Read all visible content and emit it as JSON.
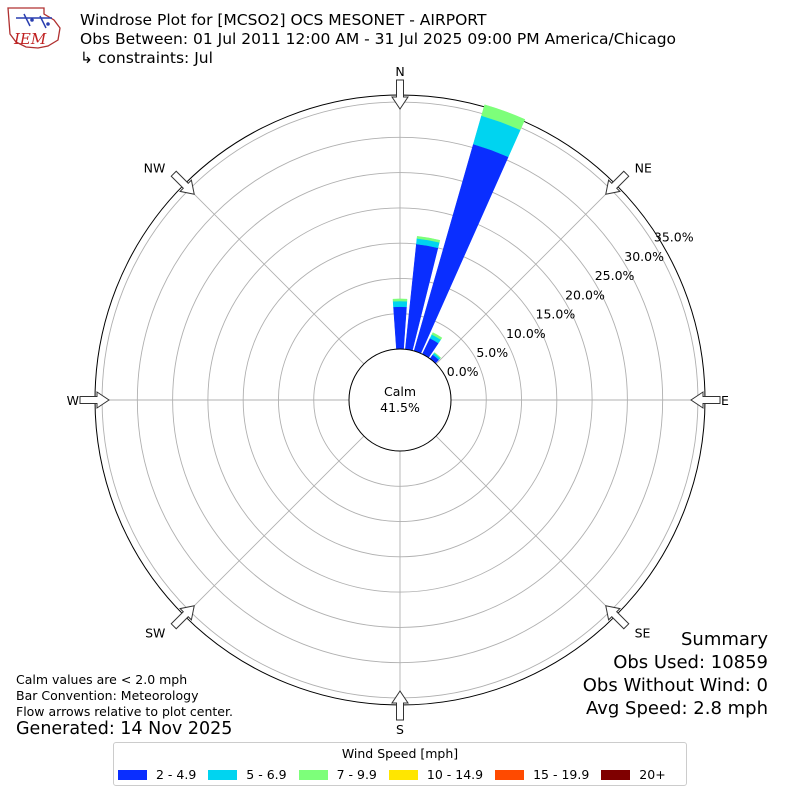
{
  "logo": {
    "text": "IEM"
  },
  "title": {
    "line1": "Windrose Plot for [MCSO2] OCS MESONET - AIRPORT",
    "line2": "Obs Between: 01 Jul 2011 12:00 AM - 31 Jul 2025 09:00 PM America/Chicago",
    "line3": "↳ constraints: Jul"
  },
  "summary": {
    "heading": "Summary",
    "obs_used": "Obs Used: 10859",
    "obs_without_wind": "Obs Without Wind: 0",
    "avg_speed": "Avg Speed: 2.8 mph"
  },
  "notes": {
    "calm": "Calm values are < 2.0 mph",
    "bar_convention": "Bar Convention: Meteorology",
    "flow_arrows": "Flow arrows relative to plot center."
  },
  "generated": "Generated: 14 Nov 2025",
  "legend": {
    "title": "Wind Speed [mph]",
    "items": [
      {
        "label": "2 - 4.9",
        "color": "#0a2eff"
      },
      {
        "label": "5 - 6.9",
        "color": "#00d4f0"
      },
      {
        "label": "7 - 9.9",
        "color": "#7dff7a"
      },
      {
        "label": "10 - 14.9",
        "color": "#ffe600"
      },
      {
        "label": "15 - 19.9",
        "color": "#ff4a00"
      },
      {
        "label": "20+",
        "color": "#7f0000"
      }
    ]
  },
  "chart_data": {
    "type": "windrose",
    "calm": {
      "label": "Calm",
      "value": "41.5%"
    },
    "directions": [
      "N",
      "NE",
      "E",
      "SE",
      "S",
      "SW",
      "W",
      "NW"
    ],
    "radial_tick_labels": [
      "0.0%",
      "5.0%",
      "10.0%",
      "15.0%",
      "20.0%",
      "25.0%",
      "30.0%",
      "35.0%"
    ],
    "radial_ticks": [
      0,
      5,
      10,
      15,
      20,
      25,
      30,
      35
    ],
    "rmax": 36,
    "bin_centers_deg": [
      0,
      10,
      20,
      30,
      40,
      50,
      60,
      70,
      80,
      90,
      100,
      110,
      120,
      130,
      140,
      150,
      160,
      170,
      180,
      190,
      200,
      210,
      220,
      230,
      240,
      250,
      260,
      270,
      280,
      290,
      300,
      310,
      320,
      330,
      340,
      350
    ],
    "bin_width_deg": 10,
    "series": [
      {
        "name": "2 - 4.9",
        "color": "#0a2eff",
        "values": [
          6.0,
          15.0,
          30.5,
          2.5,
          0.7,
          0,
          0,
          0,
          0,
          0,
          0,
          0,
          0,
          0,
          0,
          0,
          0,
          0,
          0,
          0,
          0,
          0,
          0,
          0,
          0,
          0,
          0,
          0,
          0,
          0,
          0,
          0,
          0,
          0,
          0,
          0
        ]
      },
      {
        "name": "5 - 6.9",
        "color": "#00d4f0",
        "values": [
          0.8,
          0.8,
          4.2,
          0.6,
          0.3,
          0,
          0,
          0,
          0,
          0,
          0,
          0,
          0,
          0,
          0,
          0,
          0,
          0,
          0,
          0,
          0,
          0,
          0,
          0,
          0,
          0,
          0,
          0,
          0,
          0,
          0,
          0,
          0,
          0,
          0,
          0
        ]
      },
      {
        "name": "7 - 9.9",
        "color": "#7dff7a",
        "values": [
          0.3,
          0.3,
          1.6,
          0.3,
          0.1,
          0,
          0,
          0,
          0,
          0,
          0,
          0,
          0,
          0,
          0,
          0,
          0,
          0,
          0,
          0,
          0,
          0,
          0,
          0,
          0,
          0,
          0,
          0,
          0,
          0,
          0,
          0,
          0,
          0,
          0,
          0
        ]
      },
      {
        "name": "10 - 14.9",
        "color": "#ffe600",
        "values": [
          0,
          0,
          0,
          0,
          0,
          0,
          0,
          0,
          0,
          0,
          0,
          0,
          0,
          0,
          0,
          0,
          0,
          0,
          0,
          0,
          0,
          0,
          0,
          0,
          0,
          0,
          0,
          0,
          0,
          0,
          0,
          0,
          0,
          0,
          0,
          0
        ]
      },
      {
        "name": "15 - 19.9",
        "color": "#ff4a00",
        "values": [
          0,
          0,
          0,
          0,
          0,
          0,
          0,
          0,
          0,
          0,
          0,
          0,
          0,
          0,
          0,
          0,
          0,
          0,
          0,
          0,
          0,
          0,
          0,
          0,
          0,
          0,
          0,
          0,
          0,
          0,
          0,
          0,
          0,
          0,
          0,
          0
        ]
      },
      {
        "name": "20+",
        "color": "#7f0000",
        "values": [
          0,
          0,
          0,
          0,
          0,
          0,
          0,
          0,
          0,
          0,
          0,
          0,
          0,
          0,
          0,
          0,
          0,
          0,
          0,
          0,
          0,
          0,
          0,
          0,
          0,
          0,
          0,
          0,
          0,
          0,
          0,
          0,
          0,
          0,
          0,
          0
        ]
      }
    ],
    "grid": true
  }
}
